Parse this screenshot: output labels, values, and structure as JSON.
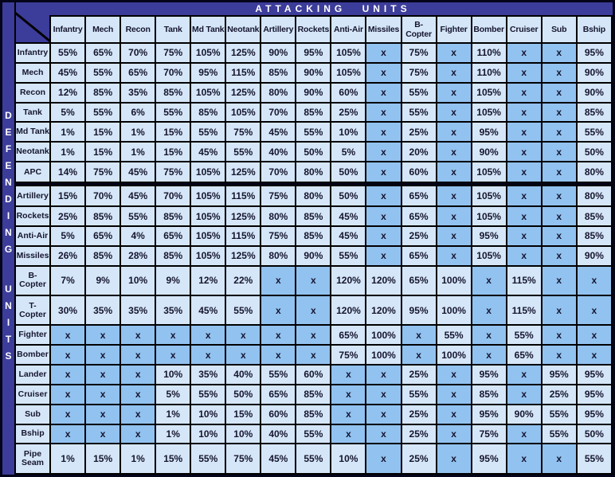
{
  "title_bar": {
    "label": "ATTACKING UNITS"
  },
  "side_bar": {
    "label": "DEFENDING UNITS"
  },
  "colors": {
    "frame_indigo": "#3c3c9a",
    "background_dark": "#04041a",
    "cell_light_blue": "#d5e6f8",
    "cell_medium_blue": "#92c2f0",
    "grid_border": "#000000",
    "cell_text": "#15152f",
    "band_text": "#ffffff"
  },
  "chart_data": {
    "type": "table",
    "title": "ATTACKING UNITS",
    "row_axis_label": "DEFENDING UNITS",
    "no_attack_symbol": "x",
    "columns": [
      "Infantry",
      "Mech",
      "Recon",
      "Tank",
      "Md Tank",
      "Neotank",
      "Artillery",
      "Rockets",
      "Anti-Air",
      "Missiles",
      "B-Copter",
      "Fighter",
      "Bomber",
      "Cruiser",
      "Sub",
      "Bship"
    ],
    "rows": [
      {
        "label": "Infantry",
        "values": [
          "55%",
          "65%",
          "70%",
          "75%",
          "105%",
          "125%",
          "90%",
          "95%",
          "105%",
          "x",
          "75%",
          "x",
          "110%",
          "x",
          "x",
          "95%"
        ]
      },
      {
        "label": "Mech",
        "values": [
          "45%",
          "55%",
          "65%",
          "70%",
          "95%",
          "115%",
          "85%",
          "90%",
          "105%",
          "x",
          "75%",
          "x",
          "110%",
          "x",
          "x",
          "90%"
        ]
      },
      {
        "label": "Recon",
        "values": [
          "12%",
          "85%",
          "35%",
          "85%",
          "105%",
          "125%",
          "80%",
          "90%",
          "60%",
          "x",
          "55%",
          "x",
          "105%",
          "x",
          "x",
          "90%"
        ]
      },
      {
        "label": "Tank",
        "values": [
          "5%",
          "55%",
          "6%",
          "55%",
          "85%",
          "105%",
          "70%",
          "85%",
          "25%",
          "x",
          "55%",
          "x",
          "105%",
          "x",
          "x",
          "85%"
        ]
      },
      {
        "label": "Md Tank",
        "values": [
          "1%",
          "15%",
          "1%",
          "15%",
          "55%",
          "75%",
          "45%",
          "55%",
          "10%",
          "x",
          "25%",
          "x",
          "95%",
          "x",
          "x",
          "55%"
        ]
      },
      {
        "label": "Neotank",
        "values": [
          "1%",
          "15%",
          "1%",
          "15%",
          "45%",
          "55%",
          "40%",
          "50%",
          "5%",
          "x",
          "20%",
          "x",
          "90%",
          "x",
          "x",
          "50%"
        ]
      },
      {
        "label": "APC",
        "values": [
          "14%",
          "75%",
          "45%",
          "75%",
          "105%",
          "125%",
          "70%",
          "80%",
          "50%",
          "x",
          "60%",
          "x",
          "105%",
          "x",
          "x",
          "80%"
        ]
      },
      {
        "label": "Artillery",
        "sep": true,
        "values": [
          "15%",
          "70%",
          "45%",
          "70%",
          "105%",
          "115%",
          "75%",
          "80%",
          "50%",
          "x",
          "65%",
          "x",
          "105%",
          "x",
          "x",
          "80%"
        ]
      },
      {
        "label": "Rockets",
        "values": [
          "25%",
          "85%",
          "55%",
          "85%",
          "105%",
          "125%",
          "80%",
          "85%",
          "45%",
          "x",
          "65%",
          "x",
          "105%",
          "x",
          "x",
          "85%"
        ]
      },
      {
        "label": "Anti-Air",
        "values": [
          "5%",
          "65%",
          "4%",
          "65%",
          "105%",
          "115%",
          "75%",
          "85%",
          "45%",
          "x",
          "25%",
          "x",
          "95%",
          "x",
          "x",
          "85%"
        ]
      },
      {
        "label": "Missiles",
        "values": [
          "26%",
          "85%",
          "28%",
          "85%",
          "105%",
          "125%",
          "80%",
          "90%",
          "55%",
          "x",
          "65%",
          "x",
          "105%",
          "x",
          "x",
          "90%"
        ]
      },
      {
        "label": "B-Copter",
        "values": [
          "7%",
          "9%",
          "10%",
          "9%",
          "12%",
          "22%",
          "x",
          "x",
          "120%",
          "120%",
          "65%",
          "100%",
          "x",
          "115%",
          "x",
          "x"
        ]
      },
      {
        "label": "T-Copter",
        "values": [
          "30%",
          "35%",
          "35%",
          "35%",
          "45%",
          "55%",
          "x",
          "x",
          "120%",
          "120%",
          "95%",
          "100%",
          "x",
          "115%",
          "x",
          "x"
        ]
      },
      {
        "label": "Fighter",
        "values": [
          "x",
          "x",
          "x",
          "x",
          "x",
          "x",
          "x",
          "x",
          "65%",
          "100%",
          "x",
          "55%",
          "x",
          "55%",
          "x",
          "x"
        ]
      },
      {
        "label": "Bomber",
        "values": [
          "x",
          "x",
          "x",
          "x",
          "x",
          "x",
          "x",
          "x",
          "75%",
          "100%",
          "x",
          "100%",
          "x",
          "65%",
          "x",
          "x"
        ]
      },
      {
        "label": "Lander",
        "values": [
          "x",
          "x",
          "x",
          "10%",
          "35%",
          "40%",
          "55%",
          "60%",
          "x",
          "x",
          "25%",
          "x",
          "95%",
          "x",
          "95%",
          "95%"
        ]
      },
      {
        "label": "Cruiser",
        "values": [
          "x",
          "x",
          "x",
          "5%",
          "55%",
          "50%",
          "65%",
          "85%",
          "x",
          "x",
          "55%",
          "x",
          "85%",
          "x",
          "25%",
          "95%"
        ]
      },
      {
        "label": "Sub",
        "values": [
          "x",
          "x",
          "x",
          "1%",
          "10%",
          "15%",
          "60%",
          "85%",
          "x",
          "x",
          "25%",
          "x",
          "95%",
          "90%",
          "55%",
          "95%"
        ]
      },
      {
        "label": "Bship",
        "values": [
          "x",
          "x",
          "x",
          "1%",
          "10%",
          "10%",
          "40%",
          "55%",
          "x",
          "x",
          "25%",
          "x",
          "75%",
          "x",
          "55%",
          "50%"
        ]
      },
      {
        "label": "Pipe Seam",
        "values": [
          "1%",
          "15%",
          "1%",
          "15%",
          "55%",
          "75%",
          "45%",
          "55%",
          "10%",
          "x",
          "25%",
          "x",
          "95%",
          "x",
          "x",
          "55%"
        ]
      }
    ]
  }
}
